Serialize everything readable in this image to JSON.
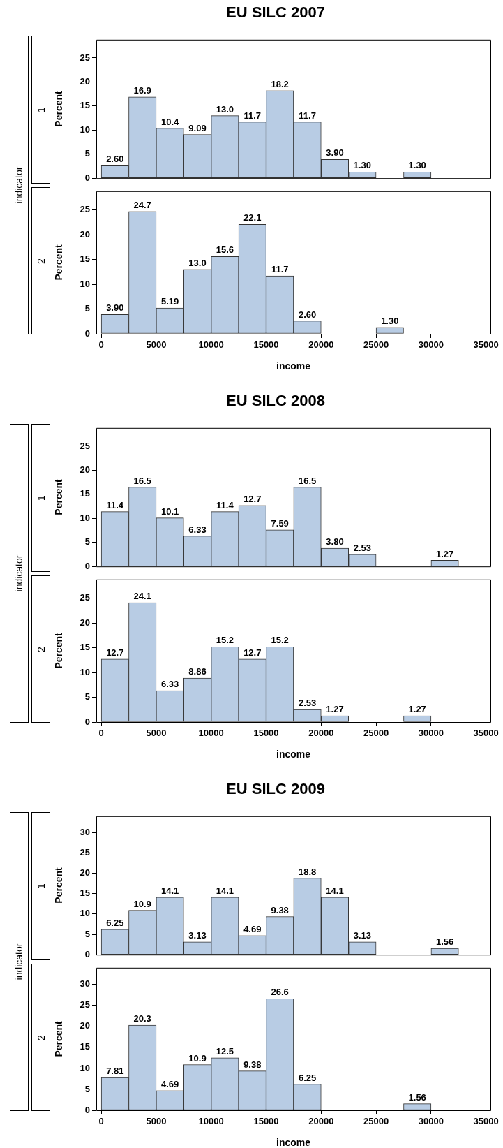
{
  "chart_data": [
    {
      "type": "histogram",
      "title": "EU SILC 2007",
      "ylabel": "Percent",
      "annotations": [
        "indicator",
        "1"
      ],
      "tick_labels": "y",
      "color": "#b8cce4",
      "bins": [
        0,
        2500,
        5000,
        7500,
        10000,
        12500,
        15000,
        17500,
        20000,
        22500,
        25000,
        27500,
        30000
      ],
      "values": [
        2.6,
        16.9,
        10.4,
        9.09,
        13.0,
        11.7,
        18.2,
        11.7,
        3.9,
        1.3,
        0,
        1.3
      ],
      "value_labels": [
        "2.60",
        "16.9",
        "10.4",
        "9.09",
        "13.0",
        "11.7",
        "18.2",
        "11.7",
        "3.90",
        "1.30",
        null,
        "1.30"
      ],
      "xlim": [
        -450,
        35400
      ],
      "xticks": [
        0,
        5000,
        10000,
        15000,
        20000,
        25000,
        30000,
        35000
      ],
      "ylim": [
        0,
        28.8
      ],
      "yticks": [
        0,
        5,
        10,
        15,
        20,
        25
      ]
    },
    {
      "type": "histogram",
      "ylabel": "Percent",
      "xlabel": "income",
      "annotations": [
        "2"
      ],
      "color": "#b8cce4",
      "bins": [
        0,
        2500,
        5000,
        7500,
        10000,
        12500,
        15000,
        17500,
        20000,
        22500,
        25000,
        27500
      ],
      "values": [
        3.9,
        24.7,
        5.19,
        13.0,
        15.6,
        22.1,
        11.7,
        2.6,
        0,
        0,
        1.3
      ],
      "value_labels": [
        "3.90",
        "24.7",
        "5.19",
        "13.0",
        "15.6",
        "22.1",
        "11.7",
        "2.60",
        null,
        null,
        "1.30"
      ],
      "xlim": [
        -450,
        35400
      ],
      "xticks": [
        0,
        5000,
        10000,
        15000,
        20000,
        25000,
        30000,
        35000
      ],
      "ylim": [
        0,
        28.8
      ],
      "yticks": [
        0,
        5,
        10,
        15,
        20,
        25
      ]
    },
    {
      "type": "histogram",
      "title": "EU SILC 2008",
      "ylabel": "Percent",
      "annotations": [
        "indicator",
        "1"
      ],
      "tick_labels": "y",
      "color": "#b8cce4",
      "bins": [
        0,
        2500,
        5000,
        7500,
        10000,
        12500,
        15000,
        17500,
        20000,
        22500,
        25000,
        27500,
        30000,
        32500
      ],
      "values": [
        11.4,
        16.5,
        10.1,
        6.33,
        11.4,
        12.7,
        7.59,
        16.5,
        3.8,
        2.53,
        0,
        0,
        1.27
      ],
      "value_labels": [
        "11.4",
        "16.5",
        "10.1",
        "6.33",
        "11.4",
        "12.7",
        "7.59",
        "16.5",
        "3.80",
        "2.53",
        null,
        null,
        "1.27"
      ],
      "xlim": [
        -450,
        35400
      ],
      "xticks": [
        0,
        5000,
        10000,
        15000,
        20000,
        25000,
        30000,
        35000
      ],
      "ylim": [
        0,
        28.8
      ],
      "yticks": [
        0,
        5,
        10,
        15,
        20,
        25
      ]
    },
    {
      "type": "histogram",
      "ylabel": "Percent",
      "xlabel": "income",
      "annotations": [
        "2"
      ],
      "color": "#b8cce4",
      "bins": [
        0,
        2500,
        5000,
        7500,
        10000,
        12500,
        15000,
        17500,
        20000,
        22500,
        25000,
        27500,
        30000
      ],
      "values": [
        12.7,
        24.1,
        6.33,
        8.86,
        15.2,
        12.7,
        15.2,
        2.53,
        1.27,
        0,
        0,
        1.27
      ],
      "value_labels": [
        "12.7",
        "24.1",
        "6.33",
        "8.86",
        "15.2",
        "12.7",
        "15.2",
        "2.53",
        "1.27",
        null,
        null,
        "1.27"
      ],
      "xlim": [
        -450,
        35400
      ],
      "xticks": [
        0,
        5000,
        10000,
        15000,
        20000,
        25000,
        30000,
        35000
      ],
      "ylim": [
        0,
        28.8
      ],
      "yticks": [
        0,
        5,
        10,
        15,
        20,
        25
      ]
    },
    {
      "type": "histogram",
      "title": "EU SILC 2009",
      "ylabel": "Percent",
      "annotations": [
        "indicator",
        "1"
      ],
      "tick_labels": "y",
      "color": "#b8cce4",
      "bins": [
        0,
        2500,
        5000,
        7500,
        10000,
        12500,
        15000,
        17500,
        20000,
        22500,
        25000,
        27500,
        30000,
        32500
      ],
      "values": [
        6.25,
        10.9,
        14.1,
        3.13,
        14.1,
        4.69,
        9.38,
        18.8,
        14.1,
        3.13,
        0,
        0,
        1.56
      ],
      "value_labels": [
        "6.25",
        "10.9",
        "14.1",
        "3.13",
        "14.1",
        "4.69",
        "9.38",
        "18.8",
        "14.1",
        "3.13",
        null,
        null,
        "1.56"
      ],
      "xlim": [
        -450,
        35400
      ],
      "xticks": [
        0,
        5000,
        10000,
        15000,
        20000,
        25000,
        30000,
        35000
      ],
      "ylim": [
        0,
        34
      ],
      "yticks": [
        0,
        5,
        10,
        15,
        20,
        25,
        30
      ]
    },
    {
      "type": "histogram",
      "ylabel": "Percent",
      "xlabel": "income",
      "annotations": [
        "2"
      ],
      "color": "#b8cce4",
      "bins": [
        0,
        2500,
        5000,
        7500,
        10000,
        12500,
        15000,
        17500,
        20000,
        22500,
        25000,
        27500,
        30000
      ],
      "values": [
        7.81,
        20.3,
        4.69,
        10.9,
        12.5,
        9.38,
        26.6,
        6.25,
        0,
        0,
        0,
        1.56
      ],
      "value_labels": [
        "7.81",
        "20.3",
        "4.69",
        "10.9",
        "12.5",
        "9.38",
        "26.6",
        "6.25",
        null,
        null,
        null,
        "1.56"
      ],
      "xlim": [
        -450,
        35400
      ],
      "xticks": [
        0,
        5000,
        10000,
        15000,
        20000,
        25000,
        30000,
        35000
      ],
      "ylim": [
        0,
        34
      ],
      "yticks": [
        0,
        5,
        10,
        15,
        20,
        25,
        30
      ]
    }
  ]
}
